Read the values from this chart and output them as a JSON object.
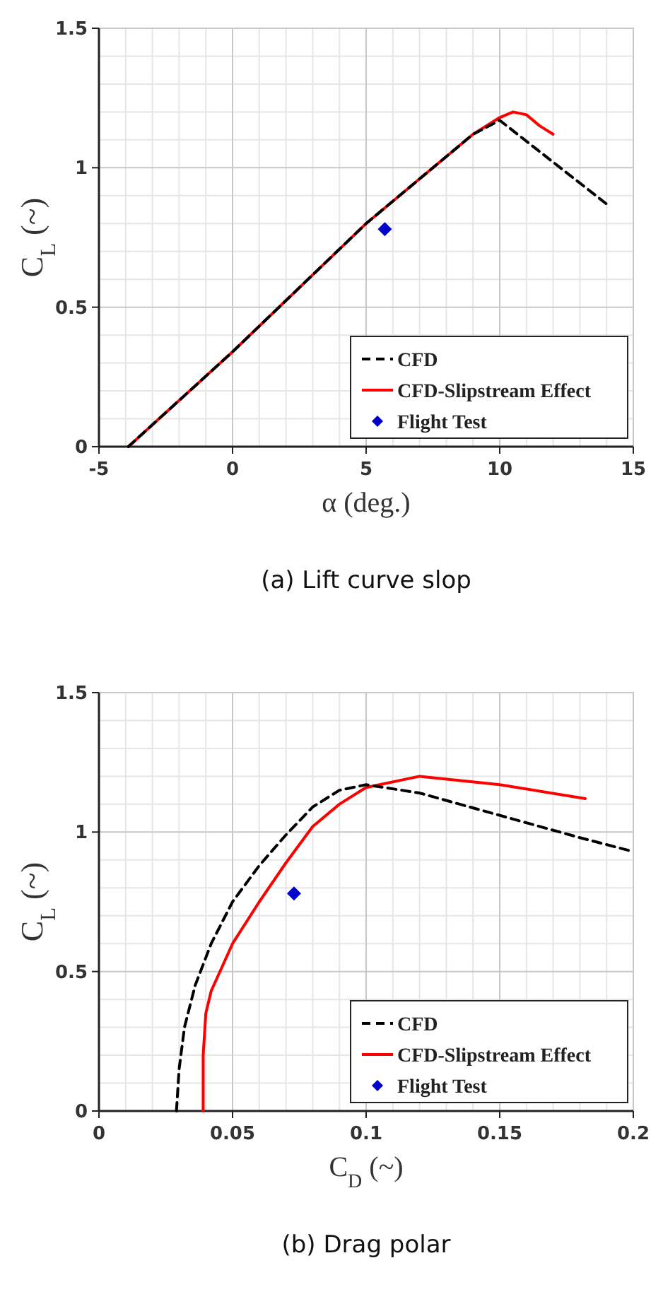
{
  "chart_data": [
    {
      "type": "line",
      "title": "(a)  Lift  curve  slop",
      "xlabel": "α (deg.)",
      "ylabel": "C$_{L}$ (~)",
      "xlim": [
        -5,
        15
      ],
      "xticks": [
        -5,
        0,
        5,
        10,
        15
      ],
      "ylim": [
        0,
        1.5
      ],
      "yticks": [
        0,
        0.5,
        1,
        1.5
      ],
      "grid": true,
      "legend": "bottom right",
      "series": [
        {
          "name": "CFD",
          "color": "#000000",
          "line_style": "dashed",
          "x": [
            -3.9,
            0,
            5,
            9,
            10,
            14
          ],
          "values": [
            0,
            0.34,
            0.8,
            1.12,
            1.17,
            0.87
          ]
        },
        {
          "name": "CFD-Slipstream Effect",
          "color": "#ff0000",
          "line_style": "solid",
          "x": [
            -3.9,
            0,
            5,
            9,
            10,
            10.5,
            11,
            11.5,
            12
          ],
          "values": [
            0,
            0.34,
            0.8,
            1.12,
            1.18,
            1.2,
            1.19,
            1.15,
            1.12
          ]
        },
        {
          "name": "Flight Test",
          "type": "scatter",
          "marker": "diamond",
          "color": "#0000cc",
          "x": [
            5.7
          ],
          "values": [
            0.78
          ]
        }
      ]
    },
    {
      "type": "line",
      "title": "(b)  Drag  polar",
      "xlabel": "C$_{D}$ (~)",
      "ylabel": "C$_{L}$ (~)",
      "xlim": [
        0,
        0.2
      ],
      "xticks": [
        0,
        0.05,
        0.1,
        0.15,
        0.2
      ],
      "ylim": [
        0,
        1.5
      ],
      "yticks": [
        0,
        0.5,
        1,
        1.5
      ],
      "grid": true,
      "legend": "bottom right",
      "series": [
        {
          "name": "CFD",
          "color": "#000000",
          "line_style": "dashed",
          "x": [
            0.029,
            0.03,
            0.032,
            0.036,
            0.042,
            0.05,
            0.06,
            0.07,
            0.08,
            0.09,
            0.1,
            0.12,
            0.15,
            0.18,
            0.2
          ],
          "values": [
            0,
            0.15,
            0.3,
            0.45,
            0.6,
            0.75,
            0.88,
            0.99,
            1.09,
            1.15,
            1.17,
            1.14,
            1.06,
            0.98,
            0.93
          ]
        },
        {
          "name": "CFD-Slipstream Effect",
          "color": "#ff0000",
          "line_style": "solid",
          "x": [
            0.039,
            0.039,
            0.04,
            0.042,
            0.05,
            0.06,
            0.07,
            0.08,
            0.09,
            0.1,
            0.12,
            0.15,
            0.182
          ],
          "values": [
            0,
            0.2,
            0.35,
            0.43,
            0.6,
            0.75,
            0.89,
            1.02,
            1.1,
            1.16,
            1.2,
            1.17,
            1.12
          ]
        },
        {
          "name": "Flight Test",
          "type": "scatter",
          "marker": "diamond",
          "color": "#0000cc",
          "x": [
            0.073
          ],
          "values": [
            0.78
          ]
        }
      ]
    }
  ]
}
